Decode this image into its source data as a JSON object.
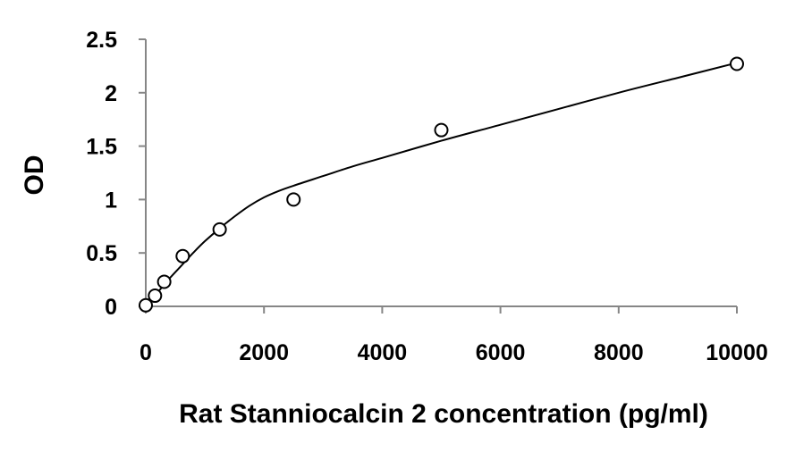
{
  "chart_data": {
    "type": "scatter",
    "xlabel": "Rat Stanniocalcin 2 concentration (pg/ml)",
    "ylabel": "OD",
    "xlim": [
      0,
      10000
    ],
    "ylim": [
      0,
      2.5
    ],
    "x_ticks": [
      0,
      2000,
      4000,
      6000,
      8000,
      10000
    ],
    "y_ticks": [
      0,
      0.5,
      1,
      1.5,
      2,
      2.5
    ],
    "x_tick_labels": [
      "0",
      "2000",
      "4000",
      "6000",
      "8000",
      "10000"
    ],
    "y_tick_labels": [
      "0",
      "0.5",
      "1",
      "1.5",
      "2",
      "2.5"
    ],
    "grid": false,
    "marker": "open-circle",
    "series": [
      {
        "x": [
          0,
          156,
          312,
          625,
          1250,
          2500,
          5000,
          10000
        ],
        "y": [
          0.01,
          0.1,
          0.23,
          0.47,
          0.72,
          1.0,
          1.65,
          2.27
        ]
      }
    ],
    "fit_curve": {
      "x": [
        0,
        200,
        400,
        600,
        800,
        1000,
        1250,
        1500,
        1750,
        2000,
        2250,
        2500,
        3000,
        3500,
        4000,
        5000,
        6000,
        7000,
        8000,
        9000,
        10000
      ],
      "y": [
        0.0,
        0.13,
        0.26,
        0.38,
        0.5,
        0.61,
        0.73,
        0.84,
        0.94,
        1.02,
        1.08,
        1.13,
        1.22,
        1.31,
        1.39,
        1.55,
        1.7,
        1.85,
        2.0,
        2.14,
        2.28
      ]
    },
    "colors": {
      "axis": "#868686",
      "marker": "#000000",
      "curve": "#000000"
    }
  }
}
